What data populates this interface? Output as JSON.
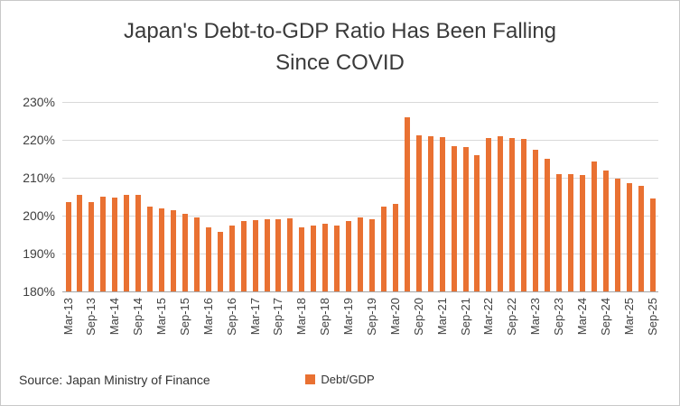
{
  "title": {
    "line1": "Japan's Debt-to-GDP Ratio Has Been Falling",
    "line2": "Since COVID"
  },
  "source_note": "Source: Japan Ministry of Finance",
  "legend": {
    "label": "Debt/GDP",
    "swatch_color": "#E97132"
  },
  "chart_data": {
    "type": "bar",
    "title": "Japan's Debt-to-GDP Ratio Has Been Falling Since COVID",
    "series_name": "Debt/GDP",
    "xlabel": "",
    "ylabel": "",
    "ylim": [
      180,
      230
    ],
    "ytick_step": 10,
    "ytick_labels": [
      "180%",
      "190%",
      "200%",
      "210%",
      "220%",
      "230%"
    ],
    "grid": true,
    "bar_color": "#E97132",
    "legend_position": "bottom",
    "x_label_every": 2,
    "x": [
      "Mar-13",
      "Jun-13",
      "Sep-13",
      "Dec-13",
      "Mar-14",
      "Jun-14",
      "Sep-14",
      "Dec-14",
      "Mar-15",
      "Jun-15",
      "Sep-15",
      "Dec-15",
      "Mar-16",
      "Jun-16",
      "Sep-16",
      "Dec-16",
      "Mar-17",
      "Jun-17",
      "Sep-17",
      "Dec-17",
      "Mar-18",
      "Jun-18",
      "Sep-18",
      "Dec-18",
      "Mar-19",
      "Jun-19",
      "Sep-19",
      "Dec-19",
      "Mar-20",
      "Jun-20",
      "Sep-20",
      "Dec-20",
      "Mar-21",
      "Jun-21",
      "Sep-21",
      "Dec-21",
      "Mar-22",
      "Jun-22",
      "Sep-22",
      "Dec-22",
      "Mar-23",
      "Jun-23",
      "Sep-23",
      "Dec-23",
      "Mar-24",
      "Jun-24",
      "Sep-24",
      "Dec-24",
      "Mar-25",
      "Jun-25",
      "Sep-25"
    ],
    "values": [
      203.5,
      205.5,
      203.5,
      205.0,
      204.8,
      205.5,
      205.5,
      202.5,
      202.0,
      201.5,
      200.5,
      199.5,
      197.0,
      195.8,
      197.5,
      198.5,
      198.8,
      199.0,
      199.0,
      199.3,
      196.8,
      197.3,
      197.8,
      197.5,
      198.5,
      199.5,
      199.0,
      202.5,
      203.0,
      226.0,
      221.3,
      221.0,
      220.8,
      218.3,
      218.0,
      216.0,
      220.5,
      221.0,
      220.5,
      220.3,
      217.3,
      215.0,
      211.0,
      211.0,
      210.8,
      214.3,
      212.0,
      209.8,
      208.5,
      207.8,
      204.5
    ]
  }
}
